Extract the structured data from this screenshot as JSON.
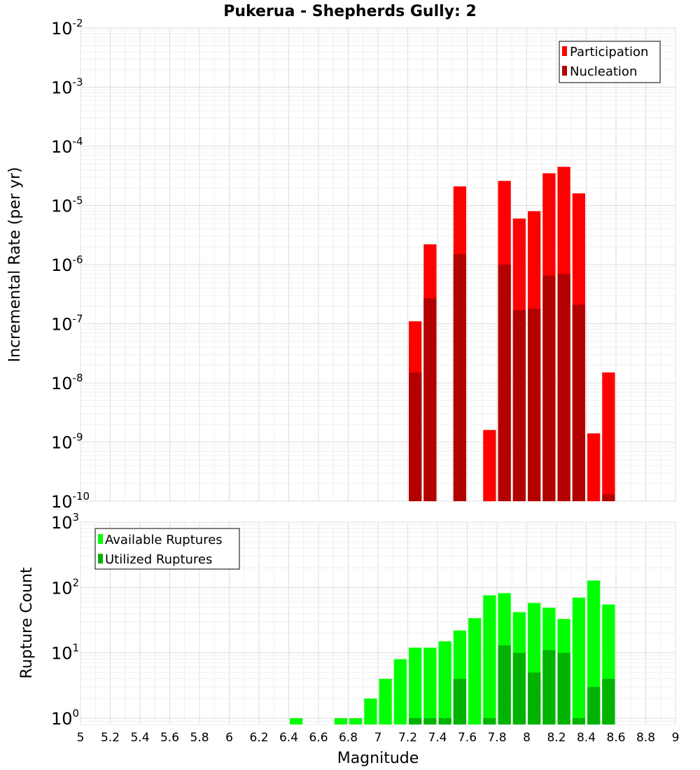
{
  "chart_data": [
    {
      "type": "bar",
      "title": "Pukerua - Shepherds Gully: 2",
      "ylabel": "Incremental Rate (per yr)",
      "y_scale": "log",
      "ylim": [
        1e-10,
        0.01
      ],
      "y_ticks": [
        {
          "base": "10",
          "exp": "-10"
        },
        {
          "base": "10",
          "exp": "-9"
        },
        {
          "base": "10",
          "exp": "-8"
        },
        {
          "base": "10",
          "exp": "-7"
        },
        {
          "base": "10",
          "exp": "-6"
        },
        {
          "base": "10",
          "exp": "-5"
        },
        {
          "base": "10",
          "exp": "-4"
        },
        {
          "base": "10",
          "exp": "-3"
        },
        {
          "base": "10",
          "exp": "-2"
        }
      ],
      "legend": {
        "placement": "top-right"
      },
      "bin_width": 0.1,
      "series": [
        {
          "name": "Participation",
          "color": "#ff0000",
          "x": [
            7.25,
            7.35,
            7.55,
            7.75,
            7.85,
            7.95,
            8.05,
            8.15,
            8.25,
            8.35,
            8.45,
            8.55
          ],
          "values": [
            1.1e-07,
            2.2e-06,
            2.1e-05,
            1.6e-09,
            2.6e-05,
            6e-06,
            8e-06,
            3.5e-05,
            4.5e-05,
            1.6e-05,
            1.4e-09,
            1.5e-08
          ]
        },
        {
          "name": "Nucleation",
          "color": "#b30000",
          "x": [
            7.25,
            7.35,
            7.55,
            7.85,
            7.95,
            8.05,
            8.15,
            8.25,
            8.35,
            8.55
          ],
          "values": [
            1.5e-08,
            2.7e-07,
            1.5e-06,
            1e-06,
            1.7e-07,
            1.8e-07,
            6.5e-07,
            7e-07,
            2.1e-07,
            1.3e-10
          ]
        }
      ]
    },
    {
      "type": "bar",
      "xlabel": "Magnitude",
      "ylabel": "Rupture Count",
      "y_scale": "log",
      "ylim": [
        0.8,
        1000
      ],
      "xlim": [
        5,
        9
      ],
      "x_ticks": [
        "5",
        "5.2",
        "5.4",
        "5.6",
        "5.8",
        "6",
        "6.2",
        "6.4",
        "6.6",
        "6.8",
        "7",
        "7.2",
        "7.4",
        "7.6",
        "7.8",
        "8",
        "8.2",
        "8.4",
        "8.6",
        "8.8",
        "9"
      ],
      "y_ticks": [
        {
          "base": "10",
          "exp": "0"
        },
        {
          "base": "10",
          "exp": "1"
        },
        {
          "base": "10",
          "exp": "2"
        },
        {
          "base": "10",
          "exp": "3"
        }
      ],
      "legend": {
        "placement": "top-left"
      },
      "bin_width": 0.1,
      "series": [
        {
          "name": "Available Ruptures",
          "color": "#00ff00",
          "x": [
            6.45,
            6.75,
            6.85,
            6.95,
            7.05,
            7.15,
            7.25,
            7.35,
            7.45,
            7.55,
            7.65,
            7.75,
            7.85,
            7.95,
            8.05,
            8.15,
            8.25,
            8.35,
            8.45,
            8.55
          ],
          "values": [
            1,
            1,
            1,
            2,
            4,
            8,
            12,
            12,
            15,
            22,
            34,
            76,
            82,
            42,
            58,
            49,
            33,
            70,
            128,
            55
          ]
        },
        {
          "name": "Utilized Ruptures",
          "color": "#00b300",
          "x": [
            7.25,
            7.35,
            7.45,
            7.55,
            7.75,
            7.85,
            7.95,
            8.05,
            8.15,
            8.25,
            8.35,
            8.45,
            8.55
          ],
          "values": [
            1,
            1,
            1,
            4,
            1,
            13,
            10,
            5,
            11,
            10,
            1,
            3,
            4
          ]
        }
      ]
    }
  ]
}
